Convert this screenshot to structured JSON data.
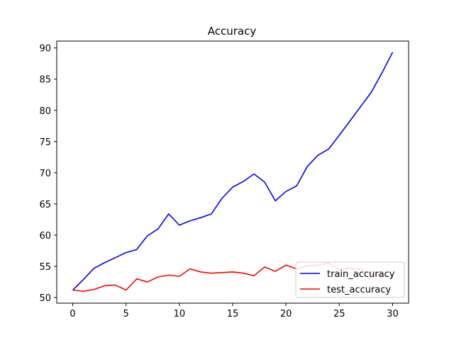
{
  "chart_data": {
    "type": "line",
    "title": "Accuracy",
    "xlabel": "",
    "ylabel": "",
    "xlim": [
      -1.5,
      31.5
    ],
    "ylim": [
      49.1,
      91.1
    ],
    "xticks": [
      0,
      5,
      10,
      15,
      20,
      25,
      30
    ],
    "yticks": [
      50,
      55,
      60,
      65,
      70,
      75,
      80,
      85,
      90
    ],
    "grid": false,
    "legend_position": "lower right",
    "x": [
      0,
      1,
      2,
      3,
      4,
      5,
      6,
      7,
      8,
      9,
      10,
      11,
      12,
      13,
      14,
      15,
      16,
      17,
      18,
      19,
      20,
      21,
      22,
      23,
      24,
      25,
      26,
      27,
      28,
      29,
      30
    ],
    "series": [
      {
        "name": "train_accuracy",
        "color": "#0000ff",
        "values": [
          51.2,
          52.9,
          54.7,
          55.6,
          56.4,
          57.2,
          57.7,
          59.9,
          61.0,
          63.4,
          61.6,
          62.3,
          62.8,
          63.4,
          65.9,
          67.7,
          68.6,
          69.8,
          68.5,
          65.5,
          67.0,
          67.9,
          71.0,
          72.8,
          73.8,
          76.0,
          78.3,
          80.6,
          82.9,
          86.0,
          89.3
        ]
      },
      {
        "name": "test_accuracy",
        "color": "#ff0000",
        "values": [
          51.2,
          51.0,
          51.3,
          51.9,
          52.0,
          51.2,
          53.0,
          52.5,
          53.3,
          53.6,
          53.4,
          54.6,
          54.1,
          53.9,
          54.0,
          54.1,
          53.9,
          53.5,
          54.9,
          54.2,
          55.2,
          54.6,
          55.1,
          55.2,
          55.5,
          54.5,
          54.7,
          54.5,
          53.8,
          53.5,
          53.2
        ]
      }
    ]
  }
}
